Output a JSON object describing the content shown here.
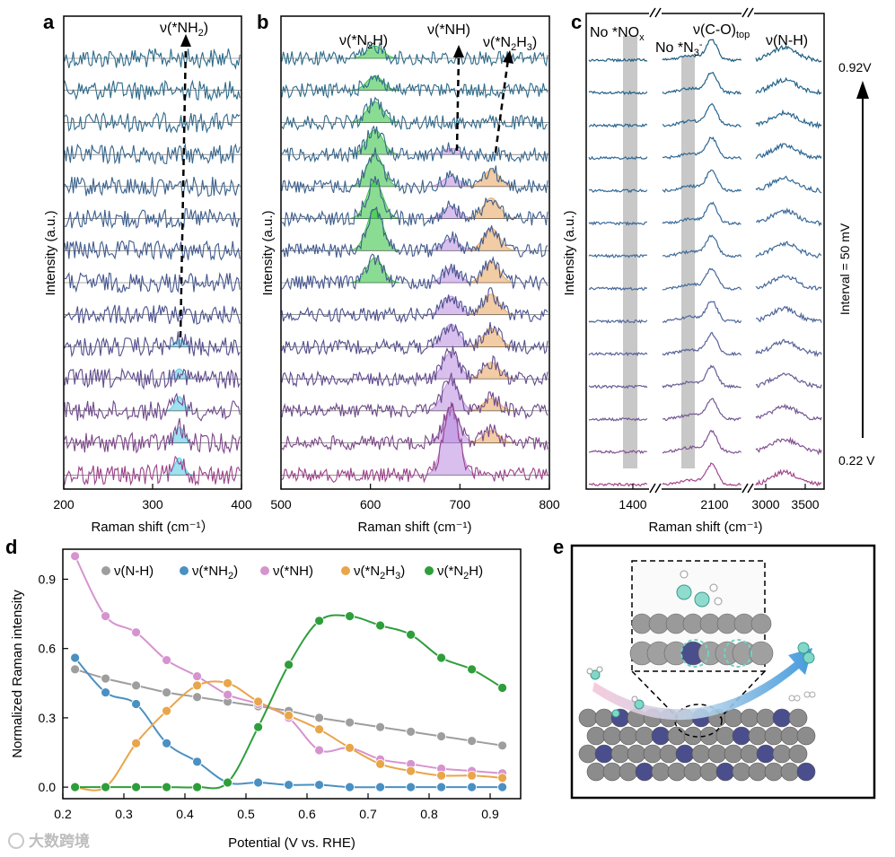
{
  "panel_labels": {
    "a": "a",
    "b": "b",
    "c": "c",
    "d": "d",
    "e": "e"
  },
  "watermark": "大数跨境",
  "chart_data": [
    {
      "id": "a",
      "type": "line",
      "title": "",
      "xlabel": "Raman shift (cm⁻¹）",
      "ylabel": "Intensity (a.u.)",
      "xlim": [
        200,
        400
      ],
      "xticks": [
        "200",
        "300",
        "400"
      ],
      "n_traces": 14,
      "peaks": [
        {
          "name": "ν(*NH₂)",
          "center": 330,
          "color": "#4fc9e3",
          "amplitude_by_trace_from_top": [
            0,
            0,
            0,
            0,
            0,
            0,
            0,
            0,
            0,
            0.25,
            0.35,
            0.5,
            0.55,
            0.6
          ]
        }
      ],
      "annotations": [
        {
          "text": "ν(*NH",
          "sub": "2",
          "after": ")"
        }
      ],
      "trace_colors": [
        "#2e6b8a",
        "#2e6b8a",
        "#336a8b",
        "#37668c",
        "#3a628d",
        "#3e5f8e",
        "#425b8e",
        "#46578e",
        "#4c538e",
        "#55508d",
        "#614c8c",
        "#6f4a8a",
        "#7c4788",
        "#9b4288"
      ]
    },
    {
      "id": "b",
      "type": "line",
      "title": "",
      "xlabel": "Raman shift (cm⁻¹)",
      "ylabel": "Intensity (a.u.)",
      "xlim": [
        500,
        800
      ],
      "xticks": [
        "500",
        "600",
        "700",
        "800"
      ],
      "n_traces": 14,
      "peaks": [
        {
          "name": "ν(*N₂H)",
          "center": 605,
          "color": "#2bbf3b",
          "amplitude_by_trace_from_top": [
            0.3,
            0.35,
            0.5,
            0.6,
            0.8,
            0.9,
            1.0,
            0.6,
            0,
            0,
            0,
            0,
            0,
            0
          ]
        },
        {
          "name": "ν(*NH)",
          "center": 690,
          "color": "#b98be0",
          "amplitude_by_trace_from_top": [
            0,
            0,
            0,
            0.15,
            0.25,
            0.3,
            0.3,
            0.35,
            0.45,
            0.55,
            0.65,
            0.75,
            0.8,
            1.6
          ]
        },
        {
          "name": "ν(*N₂H₃)",
          "center": 735,
          "color": "#e8a35a",
          "amplitude_by_trace_from_top": [
            0,
            0,
            0,
            0,
            0.4,
            0.5,
            0.55,
            0.5,
            0.5,
            0.45,
            0.4,
            0.3,
            0.3,
            0
          ]
        }
      ],
      "annotations": [
        {
          "text": "ν(*N",
          "sub": "2",
          "after": "H)"
        },
        {
          "text": "ν(*NH)",
          "sub": "",
          "after": ""
        },
        {
          "text": "ν(*N",
          "sub": "2",
          "after": "H",
          "sub2": "3",
          "after2": ")"
        }
      ],
      "trace_colors": [
        "#2e6b8a",
        "#2e6b8a",
        "#336a8b",
        "#37668c",
        "#3a628d",
        "#3e5f8e",
        "#425b8e",
        "#46578e",
        "#4c538e",
        "#55508d",
        "#614c8c",
        "#6f4a8a",
        "#7c4788",
        "#9b4288"
      ]
    },
    {
      "id": "c",
      "type": "line",
      "title": "",
      "xlabel": "Raman shift (cm⁻¹)",
      "ylabel": "Intensity (a.u.)",
      "xticks": [
        "1400",
        "2100",
        "3000",
        "3500"
      ],
      "n_traces": 14,
      "annotations": {
        "no_nox": "No *NO",
        "no_nox_sub": "x",
        "no_n3": "No *N",
        "no_n3_sub": "3",
        "no_n3_sup": "-",
        "co": "ν(C-O)",
        "co_sub": "top",
        "nh": "ν(N-H)",
        "top_potential": "0.92V",
        "bottom_potential": "0.22 V",
        "interval": "Interval = 50 mV"
      },
      "trace_colors": [
        "#1f5f82",
        "#22628a",
        "#286590",
        "#2d6794",
        "#336a97",
        "#396b99",
        "#3f6b9a",
        "#47699b",
        "#50669a",
        "#5a6299",
        "#665e97",
        "#745994",
        "#835391",
        "#a2468c"
      ]
    },
    {
      "id": "d",
      "type": "scatter",
      "title": "",
      "xlabel": "Potential (V vs. RHE)",
      "ylabel": "Normalized Raman intensity",
      "xlim": [
        0.2,
        0.95
      ],
      "ylim": [
        -0.05,
        1.03
      ],
      "xticks": [
        "0.2",
        "0.3",
        "0.4",
        "0.5",
        "0.6",
        "0.7",
        "0.8",
        "0.9"
      ],
      "yticks": [
        "0.0",
        "0.3",
        "0.6",
        "0.9"
      ],
      "x": [
        0.22,
        0.27,
        0.32,
        0.37,
        0.42,
        0.47,
        0.52,
        0.57,
        0.62,
        0.67,
        0.72,
        0.77,
        0.82,
        0.87,
        0.92
      ],
      "series": [
        {
          "name": "ν(N-H)",
          "label": "ν(N-H)",
          "sub": "",
          "after": "",
          "color": "#9e9e9e",
          "values": [
            0.51,
            0.47,
            0.44,
            0.41,
            0.39,
            0.37,
            0.35,
            0.33,
            0.3,
            0.28,
            0.26,
            0.24,
            0.22,
            0.2,
            0.18
          ]
        },
        {
          "name": "ν(*NH₂)",
          "label": "ν(*NH",
          "sub": "2",
          "after": ")",
          "color": "#4a90c2",
          "values": [
            0.56,
            0.41,
            0.36,
            0.19,
            0.11,
            0.02,
            0.02,
            0.01,
            0.01,
            0.0,
            0.0,
            0.0,
            0.0,
            0.0,
            0.0
          ]
        },
        {
          "name": "ν(*NH)",
          "label": "ν(*NH)",
          "sub": "",
          "after": "",
          "color": "#d694cf",
          "values": [
            1.0,
            0.74,
            0.67,
            0.55,
            0.48,
            0.4,
            0.36,
            0.3,
            0.16,
            0.17,
            0.12,
            0.1,
            0.08,
            0.07,
            0.06
          ]
        },
        {
          "name": "ν(*N₂H₃)",
          "label": "ν(*N",
          "sub": "2",
          "after": "H",
          "sub2": "3",
          "after2": ")",
          "color": "#e9a54a",
          "values": [
            0.0,
            0.0,
            0.19,
            0.33,
            0.44,
            0.45,
            0.37,
            0.31,
            0.25,
            0.17,
            0.1,
            0.07,
            0.05,
            0.05,
            0.04
          ]
        },
        {
          "name": "ν(*N₂H)",
          "label": "ν(*N",
          "sub": "2",
          "after": "H)",
          "color": "#2e9e3a",
          "values": [
            0.0,
            0.0,
            0.0,
            0.0,
            0.0,
            0.02,
            0.26,
            0.53,
            0.72,
            0.74,
            0.7,
            0.66,
            0.56,
            0.51,
            0.43
          ]
        }
      ]
    }
  ]
}
